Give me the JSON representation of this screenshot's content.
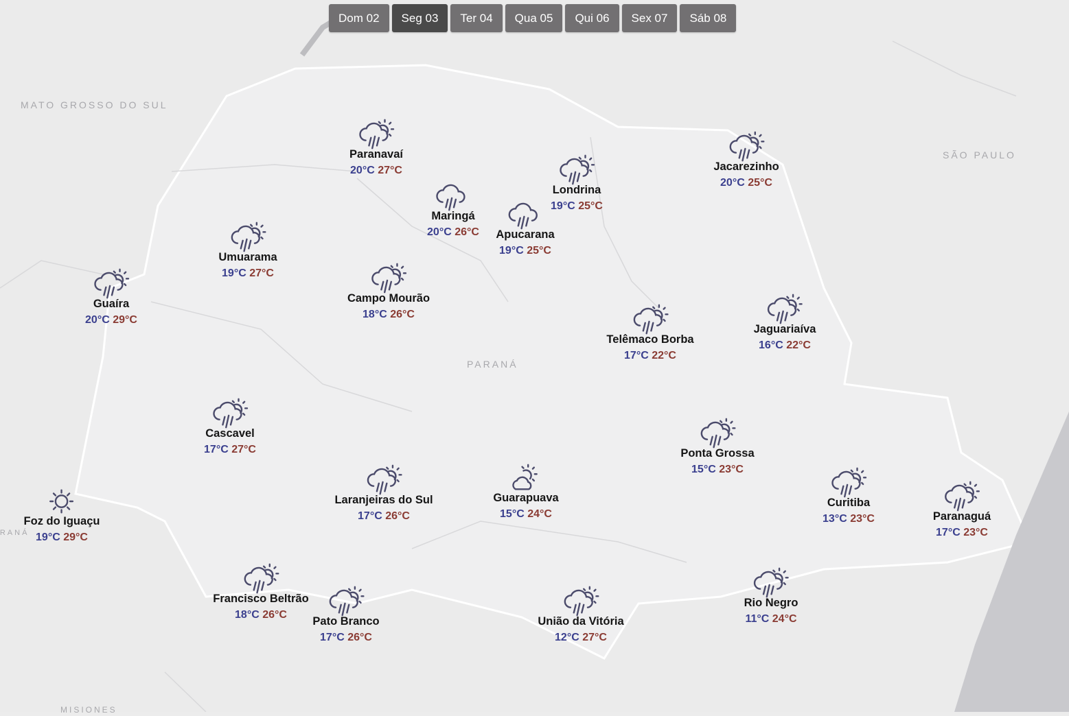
{
  "days": [
    {
      "label": "Dom 02"
    },
    {
      "label": "Seg 03",
      "active": true
    },
    {
      "label": "Ter 04"
    },
    {
      "label": "Qua 05"
    },
    {
      "label": "Qui 06"
    },
    {
      "label": "Sex 07"
    },
    {
      "label": "Sáb 08"
    }
  ],
  "regions": {
    "ms": "MATO GROSSO DO SUL",
    "sp": "SÃO PAULO",
    "pr": "PARANÁ",
    "misiones": "MISIONES",
    "py": "PARANÁ"
  },
  "colors": {
    "min": "#3a3f8e",
    "max": "#8a3b33",
    "icon": "#4b4b6b"
  },
  "cities": [
    {
      "name": "Paranavaí",
      "min": "20°C",
      "max": "27°C",
      "icon": "rain-sun"
    },
    {
      "name": "Maringá",
      "min": "20°C",
      "max": "26°C",
      "icon": "rain"
    },
    {
      "name": "Apucarana",
      "min": "19°C",
      "max": "25°C",
      "icon": "rain"
    },
    {
      "name": "Londrina",
      "min": "19°C",
      "max": "25°C",
      "icon": "rain-sun"
    },
    {
      "name": "Jacarezinho",
      "min": "20°C",
      "max": "25°C",
      "icon": "rain-sun"
    },
    {
      "name": "Umuarama",
      "min": "19°C",
      "max": "27°C",
      "icon": "rain-sun"
    },
    {
      "name": "Guaíra",
      "min": "20°C",
      "max": "29°C",
      "icon": "rain-sun"
    },
    {
      "name": "Campo Mourão",
      "min": "18°C",
      "max": "26°C",
      "icon": "rain-sun"
    },
    {
      "name": "Telêmaco Borba",
      "min": "17°C",
      "max": "22°C",
      "icon": "rain-sun"
    },
    {
      "name": "Jaguariaíva",
      "min": "16°C",
      "max": "22°C",
      "icon": "rain-sun"
    },
    {
      "name": "Cascavel",
      "min": "17°C",
      "max": "27°C",
      "icon": "rain-sun"
    },
    {
      "name": "Ponta Grossa",
      "min": "15°C",
      "max": "23°C",
      "icon": "rain-sun"
    },
    {
      "name": "Laranjeiras do Sul",
      "min": "17°C",
      "max": "26°C",
      "icon": "rain-sun"
    },
    {
      "name": "Guarapuava",
      "min": "15°C",
      "max": "24°C",
      "icon": "partly-cloudy"
    },
    {
      "name": "Curitiba",
      "min": "13°C",
      "max": "23°C",
      "icon": "rain-sun"
    },
    {
      "name": "Paranaguá",
      "min": "17°C",
      "max": "23°C",
      "icon": "rain-sun"
    },
    {
      "name": "Foz do Iguaçu",
      "min": "19°C",
      "max": "29°C",
      "icon": "sun"
    },
    {
      "name": "Francisco Beltrão",
      "min": "18°C",
      "max": "26°C",
      "icon": "rain-sun"
    },
    {
      "name": "Pato Branco",
      "min": "17°C",
      "max": "26°C",
      "icon": "rain-sun"
    },
    {
      "name": "União da Vitória",
      "min": "12°C",
      "max": "27°C",
      "icon": "rain-sun"
    },
    {
      "name": "Rio Negro",
      "min": "11°C",
      "max": "24°C",
      "icon": "rain-sun"
    }
  ]
}
